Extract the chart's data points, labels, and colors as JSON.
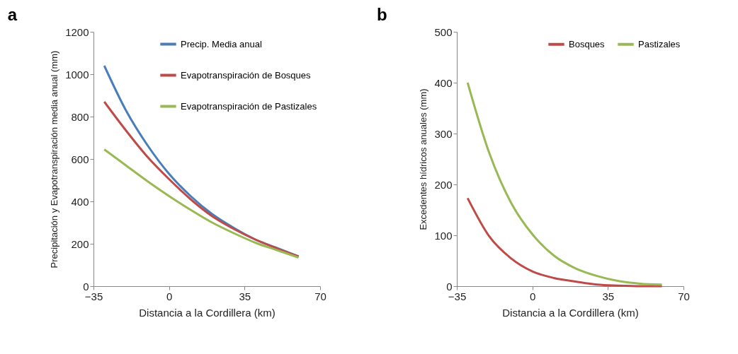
{
  "chart_data": [
    {
      "type": "line",
      "title": "a",
      "xlabel": "Distancia a la Cordillera (km)",
      "ylabel": "Precipitación y Evapotranspiración media anual (mm)",
      "x": [
        -30,
        -20,
        -10,
        0,
        10,
        20,
        30,
        40,
        50,
        60
      ],
      "xlim": [
        -35,
        70
      ],
      "xticks": [
        -35,
        0,
        35,
        70
      ],
      "ylim": [
        0,
        1200
      ],
      "yticks": [
        0,
        200,
        400,
        600,
        800,
        1000,
        1200
      ],
      "grid": false,
      "legend": "top right",
      "series": [
        {
          "name": "Precip. Media anual",
          "color": "#4a7ebb",
          "values": [
            1040,
            830,
            665,
            530,
            425,
            340,
            275,
            220,
            180,
            140
          ]
        },
        {
          "name": "Evapotranspiración de Bosques",
          "color": "#be4b48",
          "values": [
            870,
            735,
            610,
            505,
            410,
            330,
            270,
            220,
            178,
            140
          ]
        },
        {
          "name": "Evapotranspiración de Pastizales",
          "color": "#98b954",
          "values": [
            645,
            570,
            495,
            425,
            360,
            300,
            250,
            205,
            170,
            135
          ]
        }
      ]
    },
    {
      "type": "line",
      "title": "b",
      "xlabel": "Distancia a la Cordillera (km)",
      "ylabel": "Excedentes hídricos  anuales (mm)",
      "x": [
        -30,
        -20,
        -10,
        0,
        10,
        20,
        30,
        40,
        50,
        60
      ],
      "xlim": [
        -35,
        70
      ],
      "xticks": [
        -35,
        0,
        35,
        70
      ],
      "ylim": [
        0,
        500
      ],
      "yticks": [
        0,
        100,
        200,
        300,
        400,
        500
      ],
      "grid": false,
      "legend": "top right",
      "series": [
        {
          "name": "Bosques",
          "color": "#be4b48",
          "values": [
            173,
            98,
            55,
            29,
            16,
            9,
            3,
            1,
            0,
            0
          ]
        },
        {
          "name": "Pastizales",
          "color": "#98b954",
          "values": [
            400,
            262,
            165,
            102,
            60,
            35,
            20,
            10,
            5,
            3
          ]
        }
      ]
    }
  ]
}
